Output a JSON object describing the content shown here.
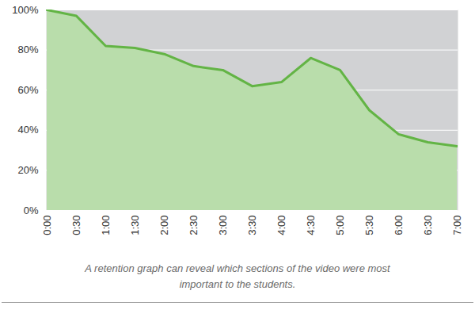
{
  "chart_data": {
    "type": "area",
    "caption": "A retention graph can reveal which sections of the video were most important to the students.",
    "categories": [
      "0:00",
      "0:30",
      "1:00",
      "1:30",
      "2:00",
      "2:30",
      "3:00",
      "3:30",
      "4:00",
      "4:30",
      "5:00",
      "5:30",
      "6:00",
      "6:30",
      "7:00"
    ],
    "values": [
      100,
      97,
      82,
      81,
      78,
      72,
      70,
      62,
      64,
      76,
      70,
      50,
      38,
      34,
      32
    ],
    "color": "#63b445",
    "ylim": [
      0,
      100
    ],
    "yticks": [
      {
        "value": 0,
        "label": "0%"
      },
      {
        "value": 20,
        "label": "20%"
      },
      {
        "value": 40,
        "label": "40%"
      },
      {
        "value": 60,
        "label": "60%"
      },
      {
        "value": 80,
        "label": "80%"
      },
      {
        "value": 100,
        "label": "100%"
      }
    ],
    "grid": true
  }
}
